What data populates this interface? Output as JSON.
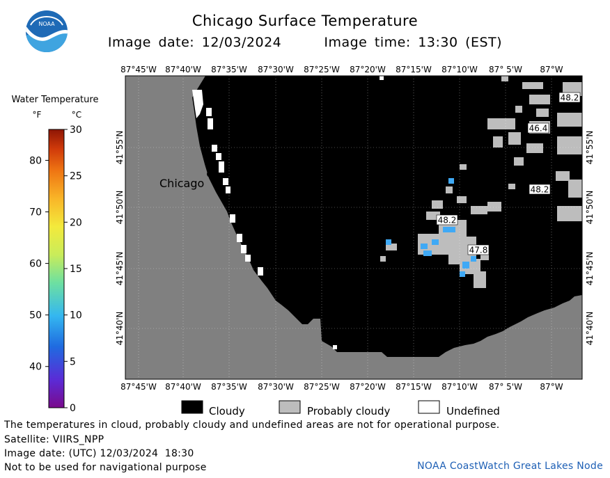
{
  "header": {
    "title": "Chicago Surface Temperature",
    "image_date_label": "Image date: 12/03/2024",
    "image_time_label": "Image time: 13:30 (EST)"
  },
  "logo": {
    "text": "NOAA"
  },
  "colorbar": {
    "title": "Water Temperature",
    "unit_f": "°F",
    "unit_c": "°C",
    "f_ticks": [
      "40",
      "50",
      "60",
      "70",
      "80"
    ],
    "c_ticks": [
      "0",
      "5",
      "10",
      "15",
      "20",
      "25",
      "30"
    ],
    "range_c": [
      0,
      30
    ]
  },
  "map": {
    "city_label": "Chicago",
    "lon_ticks": [
      "87°45'W",
      "87°40'W",
      "87°35'W",
      "87°30'W",
      "87°25'W",
      "87°20'W",
      "87°15'W",
      "87°10'W",
      "87° 5'W",
      "87°W"
    ],
    "lat_ticks": [
      "41°55'N",
      "41°50'N",
      "41°45'N",
      "41°40'N"
    ],
    "temperature_labels": [
      "48.2",
      "46.4",
      "48.2",
      "48.2",
      "47.8"
    ],
    "colors": {
      "land": "#808080",
      "cloudy": "#000000",
      "probably_cloudy": "#bdbdbd",
      "water_47f": "#3fa9f5",
      "undefined": "#ffffff"
    }
  },
  "legend": {
    "items": [
      {
        "label": "Cloudy",
        "color": "#000000"
      },
      {
        "label": "Probably cloudy",
        "color": "#bdbdbd"
      },
      {
        "label": "Undefined",
        "color": "#ffffff"
      }
    ]
  },
  "footer": {
    "disclaimer": "The temperatures in cloud, probably cloudy and undefined areas are not for operational purpose.",
    "satellite": "Satellite: VIIRS_NPP",
    "utc_date": "Image date: (UTC) 12/03/2024  18:30",
    "nav_warning": "Not to be used for navigational purpose",
    "credit": "NOAA CoastWatch Great Lakes Node"
  }
}
